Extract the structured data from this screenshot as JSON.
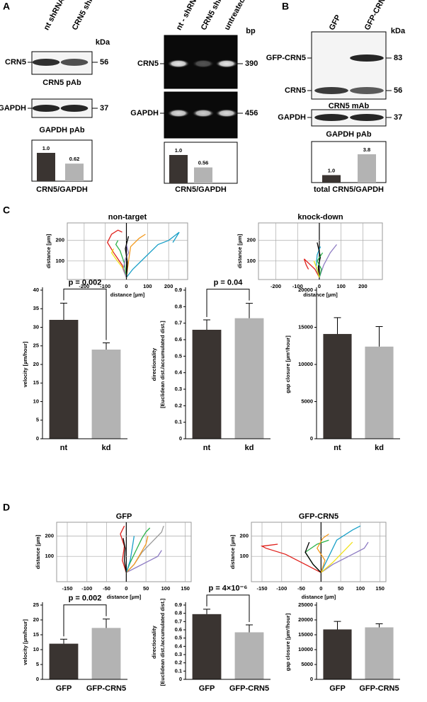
{
  "panel_labels": [
    "A",
    "B",
    "C",
    "D"
  ],
  "blots": [
    {
      "lanes": [
        "nt shRNA",
        "CRN5 shRNA"
      ],
      "unit": "kDa",
      "rows": [
        {
          "markers": [
            {
              "label": "CRN5",
              "size": 56
            }
          ],
          "caption": "CRN5 pAb"
        },
        {
          "markers": [
            {
              "label": "GAPDH",
              "size": 37
            }
          ],
          "caption": "GAPDH pAb"
        }
      ]
    },
    {
      "lanes": [
        "nt - shRNA",
        "CRN5 shRNA",
        "untreated"
      ],
      "unit": "bp",
      "rows": [
        {
          "markers": [
            {
              "label": "CRN5",
              "size": 390
            }
          ]
        },
        {
          "markers": [
            {
              "label": "GAPDH",
              "size": 456
            }
          ]
        }
      ]
    },
    {
      "lanes": [
        "GFP",
        "GFP-CRN5"
      ],
      "unit": "kDa",
      "rows": [
        {
          "markers": [
            {
              "label": "GFP-CRN5",
              "size": 83
            },
            {
              "label": "CRN5",
              "size": 56
            }
          ],
          "caption": "CRN5 mAb"
        },
        {
          "markers": [
            {
              "label": "GAPDH",
              "size": 37
            }
          ],
          "caption": "GAPDH pAb"
        }
      ]
    }
  ],
  "chart_data": [
    {
      "type": "quant",
      "values": [
        1.0,
        0.62
      ],
      "value_labels": [
        "1.0",
        "0.62"
      ],
      "colors": [
        "#3a3431",
        "#b3b3b3"
      ],
      "xlabel": "CRN5/GAPDH"
    },
    {
      "type": "quant",
      "values": [
        1.0,
        0.56
      ],
      "value_labels": [
        "1.0",
        "0.56"
      ],
      "colors": [
        "#3a3431",
        "#b3b3b3"
      ],
      "xlabel": "CRN5/GAPDH"
    },
    {
      "type": "quant",
      "values": [
        1.0,
        3.8
      ],
      "value_labels": [
        "1.0",
        "3.8"
      ],
      "colors": [
        "#3a3431",
        "#b3b3b3"
      ],
      "xlabel": "total CRN5/GAPDH"
    },
    {
      "type": "tracks",
      "title": "non-target",
      "xlabel": "distance [µm]",
      "ylabel": "distance [µm]",
      "xlim": [
        -280,
        290
      ],
      "ylim": [
        10,
        285
      ],
      "xticks": [
        -200,
        -100,
        0,
        100,
        200
      ],
      "yticks": [
        100,
        200
      ],
      "grid": true,
      "series": [
        {
          "color": "#e0201b",
          "x": [
            0,
            -20,
            -60,
            -90,
            -70,
            -40,
            -20
          ],
          "y": [
            20,
            80,
            140,
            190,
            230,
            250,
            240
          ]
        },
        {
          "color": "#1aa0c8",
          "x": [
            0,
            30,
            90,
            150,
            200,
            250,
            220
          ],
          "y": [
            20,
            60,
            120,
            180,
            200,
            240,
            190
          ]
        },
        {
          "color": "#2bb34a",
          "x": [
            0,
            -10,
            -30,
            -50,
            -40
          ],
          "y": [
            20,
            90,
            150,
            180,
            200
          ]
        },
        {
          "color": "#f2e21a",
          "x": [
            0,
            -20,
            -50,
            -70,
            -60
          ],
          "y": [
            20,
            70,
            110,
            140,
            160
          ]
        },
        {
          "color": "#f39a1e",
          "x": [
            0,
            10,
            20,
            60,
            90
          ],
          "y": [
            20,
            100,
            170,
            210,
            230
          ]
        },
        {
          "color": "#8e7cc3",
          "x": [
            0,
            -15,
            -5,
            10,
            0
          ],
          "y": [
            20,
            60,
            110,
            140,
            180
          ]
        },
        {
          "color": "#000000",
          "x": [
            0,
            5,
            -5,
            10
          ],
          "y": [
            20,
            90,
            160,
            220
          ]
        }
      ]
    },
    {
      "type": "tracks",
      "title": "knock-down",
      "xlabel": "distance [µm]",
      "ylabel": "distance [µm]",
      "xlim": [
        -280,
        290
      ],
      "ylim": [
        10,
        285
      ],
      "xticks": [
        -200,
        -100,
        0,
        100,
        200
      ],
      "yticks": [
        100,
        200
      ],
      "grid": true,
      "series": [
        {
          "color": "#e0201b",
          "x": [
            0,
            -20,
            -50,
            -70,
            -60,
            -50
          ],
          "y": [
            20,
            60,
            90,
            110,
            80,
            60
          ]
        },
        {
          "color": "#8e7cc3",
          "x": [
            0,
            20,
            50,
            80
          ],
          "y": [
            20,
            80,
            140,
            180
          ]
        },
        {
          "color": "#1aa0c8",
          "x": [
            0,
            -15,
            -10,
            5
          ],
          "y": [
            20,
            70,
            130,
            170
          ]
        },
        {
          "color": "#000000",
          "x": [
            0,
            -5,
            5,
            -10
          ],
          "y": [
            20,
            70,
            120,
            190
          ]
        },
        {
          "color": "#2bb34a",
          "x": [
            0,
            10,
            -10,
            15
          ],
          "y": [
            20,
            60,
            100,
            140
          ]
        },
        {
          "color": "#f2e21a",
          "x": [
            0,
            -10,
            -25
          ],
          "y": [
            20,
            60,
            100
          ]
        }
      ]
    },
    {
      "type": "bar",
      "categories": [
        "nt",
        "kd"
      ],
      "values": [
        32,
        24
      ],
      "errors": [
        4.5,
        1.8
      ],
      "colors": [
        "#3a3431",
        "#b3b3b3"
      ],
      "ylabel": "velocity [µm/hour]",
      "ylim": [
        0,
        40
      ],
      "yticks": [
        0,
        5,
        10,
        15,
        20,
        25,
        30,
        35,
        40
      ],
      "annotation": "p = 0.002"
    },
    {
      "type": "bar",
      "categories": [
        "nt",
        "kd"
      ],
      "values": [
        0.66,
        0.73
      ],
      "errors": [
        0.06,
        0.09
      ],
      "colors": [
        "#3a3431",
        "#b3b3b3"
      ],
      "ylabel": [
        "directionality",
        "[Euclidean dist./accumulated dist.]"
      ],
      "ylim": [
        0,
        0.9
      ],
      "yticks": [
        0,
        0.1,
        0.2,
        0.3,
        0.4,
        0.5,
        0.6,
        0.7,
        0.8,
        0.9
      ],
      "annotation": "p = 0.04"
    },
    {
      "type": "bar",
      "categories": [
        "nt",
        "kd"
      ],
      "values": [
        14100,
        12400
      ],
      "errors": [
        2200,
        2700
      ],
      "colors": [
        "#3a3431",
        "#b3b3b3"
      ],
      "ylabel": "gap closure [µm²/hour]",
      "ylim": [
        0,
        20000
      ],
      "yticks": [
        0,
        5000,
        10000,
        15000,
        20000
      ]
    },
    {
      "type": "tracks",
      "title": "GFP",
      "xlabel": "distance [µm]",
      "ylabel": "distance [µm]",
      "xlim": [
        -177,
        165
      ],
      "ylim": [
        -25,
        268
      ],
      "xticks": [
        -150,
        -100,
        -50,
        0,
        50,
        100,
        150
      ],
      "yticks": [
        100,
        200
      ],
      "grid": true,
      "series": [
        {
          "color": "#e0201b",
          "x": [
            0,
            -10,
            -5,
            -15,
            -5
          ],
          "y": [
            20,
            80,
            150,
            210,
            250
          ]
        },
        {
          "color": "#2bb34a",
          "x": [
            0,
            10,
            25,
            40,
            50,
            60
          ],
          "y": [
            20,
            70,
            130,
            190,
            220,
            240
          ]
        },
        {
          "color": "#9a9a9a",
          "x": [
            0,
            20,
            40,
            70,
            90,
            95
          ],
          "y": [
            20,
            60,
            120,
            180,
            220,
            250
          ]
        },
        {
          "color": "#8e7cc3",
          "x": [
            0,
            30,
            60,
            80,
            90
          ],
          "y": [
            20,
            50,
            80,
            100,
            130
          ]
        },
        {
          "color": "#f39a1e",
          "x": [
            0,
            20,
            35,
            50,
            55
          ],
          "y": [
            20,
            60,
            110,
            160,
            200
          ]
        },
        {
          "color": "#1aa0c8",
          "x": [
            0,
            10,
            15,
            20
          ],
          "y": [
            20,
            80,
            140,
            200
          ]
        },
        {
          "color": "#000000",
          "x": [
            0,
            -5,
            -3,
            -8
          ],
          "y": [
            20,
            80,
            140,
            190
          ]
        }
      ]
    },
    {
      "type": "tracks",
      "title": "GFP-CRN5",
      "xlabel": "distance [µm]",
      "ylabel": "distance [µm]",
      "xlim": [
        -177,
        165
      ],
      "ylim": [
        -25,
        268
      ],
      "xticks": [
        -150,
        -100,
        -50,
        0,
        50,
        100,
        150
      ],
      "yticks": [
        100,
        200
      ],
      "grid": true,
      "series": [
        {
          "color": "#e0201b",
          "x": [
            0,
            -40,
            -90,
            -140,
            -150,
            -110
          ],
          "y": [
            20,
            60,
            110,
            140,
            150,
            160
          ]
        },
        {
          "color": "#1aa0c8",
          "x": [
            0,
            20,
            40,
            80,
            100
          ],
          "y": [
            20,
            100,
            180,
            230,
            250
          ]
        },
        {
          "color": "#8e7cc3",
          "x": [
            0,
            30,
            70,
            110,
            120
          ],
          "y": [
            20,
            60,
            100,
            140,
            170
          ]
        },
        {
          "color": "#2bb34a",
          "x": [
            0,
            -20,
            -40,
            -10,
            20
          ],
          "y": [
            20,
            60,
            120,
            160,
            180
          ]
        },
        {
          "color": "#f2e21a",
          "x": [
            0,
            30,
            60,
            80
          ],
          "y": [
            20,
            70,
            130,
            170
          ]
        },
        {
          "color": "#f39a1e",
          "x": [
            0,
            10,
            -10,
            5,
            20
          ],
          "y": [
            20,
            80,
            140,
            190,
            210
          ]
        },
        {
          "color": "#000000",
          "x": [
            0,
            -20,
            -40,
            -30
          ],
          "y": [
            20,
            60,
            120,
            170
          ]
        }
      ]
    },
    {
      "type": "bar",
      "categories": [
        "GFP",
        "GFP-CRN5"
      ],
      "values": [
        12,
        17.3
      ],
      "errors": [
        1.5,
        3
      ],
      "colors": [
        "#3a3431",
        "#b3b3b3"
      ],
      "ylabel": "velocity [µm/hour]",
      "ylim": [
        0,
        25
      ],
      "yticks": [
        0,
        5,
        10,
        15,
        20,
        25
      ],
      "annotation": "p = 0.002"
    },
    {
      "type": "bar",
      "categories": [
        "GFP",
        "GFP-CRN5"
      ],
      "values": [
        0.79,
        0.57
      ],
      "errors": [
        0.06,
        0.09
      ],
      "colors": [
        "#3a3431",
        "#b3b3b3"
      ],
      "ylabel": [
        "directionality",
        "[Euclidean dist./accumulated dist.]"
      ],
      "ylim": [
        0,
        0.9
      ],
      "yticks": [
        0,
        0.1,
        0.2,
        0.3,
        0.4,
        0.5,
        0.6,
        0.7,
        0.8,
        0.9
      ],
      "annotation": "p = 4×10⁻⁶"
    },
    {
      "type": "bar",
      "categories": [
        "GFP",
        "GFP-CRN5"
      ],
      "values": [
        16800,
        17500
      ],
      "errors": [
        2700,
        1200
      ],
      "colors": [
        "#3a3431",
        "#b3b3b3"
      ],
      "ylabel": "gap closure [µm²/hour]",
      "ylim": [
        0,
        25000
      ],
      "yticks": [
        0,
        5000,
        10000,
        15000,
        20000,
        25000
      ]
    }
  ]
}
